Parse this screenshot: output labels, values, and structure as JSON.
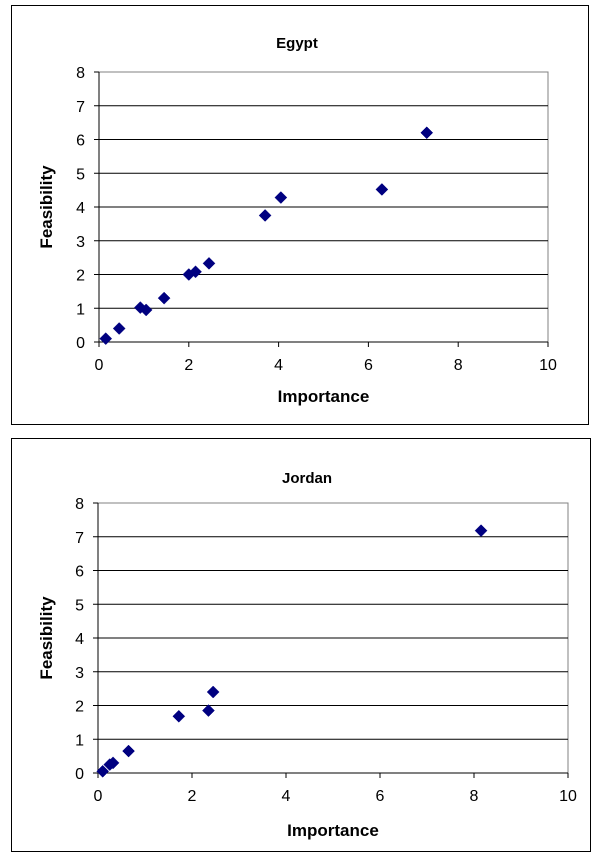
{
  "chart_data": [
    {
      "type": "scatter",
      "title": "Egypt",
      "xlabel": "Importance",
      "ylabel": "Feasibility",
      "xlim": [
        0,
        10
      ],
      "ylim": [
        0,
        8
      ],
      "xticks": [
        0,
        2,
        4,
        6,
        8,
        10
      ],
      "yticks": [
        0,
        1,
        2,
        3,
        4,
        5,
        6,
        7,
        8
      ],
      "grid": "horizontal",
      "legend": "none",
      "marker_color": "#000080",
      "points": [
        {
          "x": 0.15,
          "y": 0.1
        },
        {
          "x": 0.45,
          "y": 0.4
        },
        {
          "x": 0.92,
          "y": 1.02
        },
        {
          "x": 1.05,
          "y": 0.95
        },
        {
          "x": 1.45,
          "y": 1.3
        },
        {
          "x": 2.0,
          "y": 2.0
        },
        {
          "x": 2.15,
          "y": 2.08
        },
        {
          "x": 2.45,
          "y": 2.33
        },
        {
          "x": 3.7,
          "y": 3.75
        },
        {
          "x": 4.05,
          "y": 4.28
        },
        {
          "x": 6.3,
          "y": 4.52
        },
        {
          "x": 7.3,
          "y": 6.2
        }
      ]
    },
    {
      "type": "scatter",
      "title": "Jordan",
      "xlabel": "Importance",
      "ylabel": "Feasibility",
      "xlim": [
        0,
        10
      ],
      "ylim": [
        0,
        8
      ],
      "xticks": [
        0,
        2,
        4,
        6,
        8,
        10
      ],
      "yticks": [
        0,
        1,
        2,
        3,
        4,
        5,
        6,
        7,
        8
      ],
      "grid": "horizontal",
      "legend": "none",
      "marker_color": "#000080",
      "points": [
        {
          "x": 0.1,
          "y": 0.05
        },
        {
          "x": 0.25,
          "y": 0.25
        },
        {
          "x": 0.32,
          "y": 0.3
        },
        {
          "x": 0.65,
          "y": 0.65
        },
        {
          "x": 1.72,
          "y": 1.68
        },
        {
          "x": 2.35,
          "y": 1.85
        },
        {
          "x": 2.45,
          "y": 2.4
        },
        {
          "x": 8.15,
          "y": 7.18
        }
      ]
    }
  ]
}
